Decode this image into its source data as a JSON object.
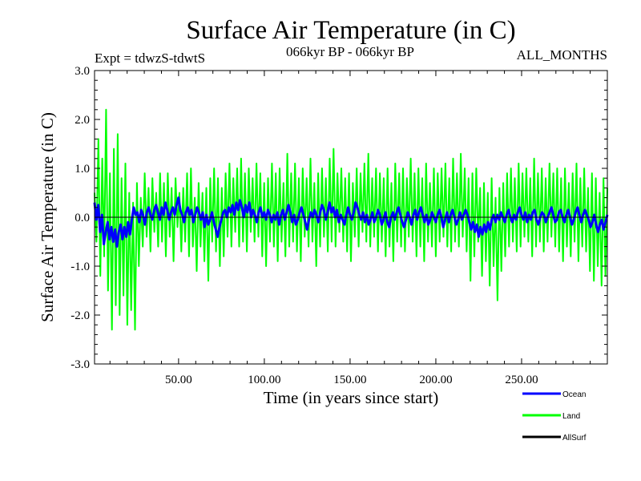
{
  "chart_data": {
    "type": "line",
    "title": "Surface Air Temperature (in C)",
    "subtitle_left": "Expt = tdwzS-tdwtS",
    "subtitle_center": "066kyr BP - 066kyr BP",
    "subtitle_right": "ALL_MONTHS",
    "xlabel": "Time (in years since start)",
    "ylabel": "Surface Air Temperature (in C)",
    "xlim": [
      1,
      300
    ],
    "ylim": [
      -3.0,
      3.0
    ],
    "x_ticks": [
      50,
      100,
      150,
      200,
      250
    ],
    "x_tick_labels": [
      "50.00",
      "100.00",
      "150.00",
      "200.00",
      "250.00"
    ],
    "y_ticks": [
      -3,
      -2,
      -1,
      0,
      1,
      2,
      3
    ],
    "y_tick_labels": [
      "-3.0",
      "-2.0",
      "-1.0",
      "0.0",
      "1.0",
      "2.0",
      "3.0"
    ],
    "zero_line": true,
    "legend_position": "bottom-right",
    "x_step": 0.0833,
    "series": [
      {
        "name": "Ocean",
        "color": "#0000ff",
        "values": [
          0.3,
          -0.05,
          0.25,
          -0.3,
          0.05,
          -0.55,
          -0.3,
          -0.1,
          -0.45,
          -0.2,
          -0.5,
          -0.25,
          -0.6,
          -0.3,
          -0.15,
          -0.45,
          -0.2,
          -0.4,
          -0.1,
          -0.35,
          -0.05,
          0.2,
          0.05,
          0.1,
          -0.1,
          0.15,
          0.05,
          -0.15,
          0.1,
          0.2,
          0.05,
          -0.05,
          0.15,
          0.25,
          0.1,
          -0.05,
          0.2,
          0.05,
          0.3,
          0.15,
          -0.05,
          0.1,
          0.2,
          0.05,
          0.25,
          0.4,
          0.15,
          0.05,
          -0.1,
          0.1,
          0.2,
          0.05,
          0.15,
          -0.1,
          0.05,
          0.2,
          0.1,
          -0.05,
          0.1,
          -0.2,
          0.05,
          -0.15,
          -0.05,
          0.1,
          -0.1,
          -0.25,
          -0.4,
          -0.2,
          -0.05,
          0.1,
          0.15,
          0.0,
          0.2,
          0.1,
          0.25,
          0.05,
          0.3,
          0.15,
          0.35,
          0.2,
          0.0,
          0.25,
          0.1,
          0.3,
          0.0,
          0.15,
          0.05,
          -0.1,
          0.1,
          0.2,
          0.0,
          0.1,
          -0.05,
          0.15,
          0.05,
          -0.1,
          0.05,
          -0.05,
          0.1,
          -0.15,
          0.05,
          0.15,
          -0.05,
          0.1,
          0.25,
          0.1,
          -0.1,
          0.05,
          -0.15,
          -0.05,
          0.1,
          0.2,
          0.05,
          -0.1,
          -0.25,
          -0.05,
          0.1,
          0.0,
          0.15,
          0.05,
          -0.1,
          0.1,
          0.25,
          0.15,
          -0.05,
          0.1,
          0.3,
          0.1,
          0.2,
          0.0,
          0.15,
          -0.1,
          0.05,
          -0.05,
          -0.15,
          0.05,
          0.2,
          0.05,
          -0.05,
          0.1,
          0.3,
          0.2,
          0.05,
          -0.05,
          0.1,
          -0.1,
          0.05,
          -0.15,
          -0.05,
          0.1,
          -0.1,
          0.0,
          0.15,
          0.05,
          -0.15,
          -0.05,
          0.1,
          -0.1,
          -0.2,
          0.0,
          0.1,
          -0.05,
          0.1,
          0.2,
          0.05,
          -0.1,
          -0.2,
          -0.05,
          0.1,
          0.0,
          -0.15,
          0.05,
          0.15,
          -0.05,
          0.1,
          0.2,
          0.05,
          -0.1,
          0.05,
          -0.15,
          -0.05,
          0.1,
          0.0,
          -0.1,
          0.05,
          0.15,
          0.0,
          -0.2,
          -0.05,
          0.1,
          -0.1,
          0.05,
          0.15,
          0.0,
          -0.15,
          -0.05,
          0.1,
          -0.05,
          0.05,
          0.15,
          0.05,
          -0.1,
          -0.25,
          -0.1,
          -0.3,
          -0.15,
          -0.4,
          -0.2,
          -0.35,
          -0.15,
          -0.3,
          -0.1,
          -0.25,
          -0.05,
          0.05,
          -0.1,
          0.05,
          -0.05,
          0.1,
          0.0,
          -0.1,
          0.05,
          0.15,
          0.0,
          -0.1,
          0.05,
          -0.05,
          0.1,
          0.2,
          0.05,
          -0.05,
          0.1,
          -0.1,
          0.05,
          -0.05,
          0.1,
          0.15,
          -0.05,
          -0.15,
          0.0,
          0.1,
          0.05,
          -0.1,
          0.0,
          0.1,
          0.2,
          0.05,
          -0.1,
          -0.05,
          0.1,
          0.15,
          0.0,
          -0.1,
          0.05,
          0.15,
          0.0,
          -0.15,
          -0.05,
          0.1,
          0.2,
          0.05,
          -0.1,
          0.05,
          0.15,
          0.05,
          -0.05,
          -0.2,
          -0.1,
          0.05,
          -0.15,
          -0.3,
          -0.15,
          -0.05,
          -0.25,
          -0.1,
          0.05
        ]
      },
      {
        "name": "Land",
        "color": "#00ff00",
        "values": [
          0.5,
          -0.5,
          1.6,
          -1.2,
          1.2,
          -0.8,
          2.2,
          -1.5,
          0.9,
          -2.3,
          1.4,
          -1.8,
          1.7,
          -2.0,
          0.8,
          -1.6,
          1.1,
          -2.2,
          0.5,
          -1.9,
          0.3,
          -2.3,
          0.7,
          -1.0,
          0.4,
          -0.6,
          0.9,
          -0.4,
          0.6,
          -0.7,
          0.8,
          -0.3,
          0.5,
          -0.6,
          0.9,
          -0.5,
          0.7,
          -0.8,
          0.9,
          -0.4,
          0.6,
          -0.9,
          0.8,
          -0.2,
          0.5,
          -0.7,
          0.6,
          -0.5,
          0.9,
          -0.8,
          1.0,
          -0.6,
          0.4,
          -1.1,
          0.7,
          -0.6,
          0.5,
          -0.9,
          0.6,
          -1.3,
          0.8,
          -0.5,
          1.0,
          -0.7,
          0.8,
          -1.0,
          0.6,
          -0.8,
          0.9,
          -0.4,
          1.1,
          -0.6,
          0.8,
          -0.3,
          1.0,
          -0.6,
          1.2,
          -0.5,
          0.9,
          -0.7,
          1.0,
          -0.3,
          0.8,
          -0.5,
          1.1,
          -0.4,
          0.9,
          -0.8,
          0.7,
          -1.0,
          0.8,
          -0.5,
          1.1,
          -0.6,
          0.9,
          -0.9,
          1.0,
          -0.5,
          0.7,
          -0.8,
          1.3,
          -0.6,
          0.9,
          -0.5,
          1.1,
          -0.7,
          0.8,
          -0.9,
          1.0,
          -0.4,
          0.8,
          -0.6,
          1.2,
          -0.5,
          0.7,
          -1.0,
          0.9,
          -0.6,
          1.0,
          -0.4,
          0.8,
          -0.7,
          1.2,
          -0.5,
          1.4,
          -0.6,
          0.9,
          -0.3,
          1.0,
          -0.5,
          0.8,
          -0.7,
          0.9,
          -0.9,
          0.7,
          -0.4,
          1.0,
          -0.6,
          0.9,
          -0.3,
          1.1,
          -0.5,
          1.3,
          -0.6,
          0.8,
          -0.4,
          1.0,
          -0.7,
          0.9,
          -0.5,
          0.8,
          -0.8,
          1.0,
          -0.6,
          0.7,
          -0.9,
          1.1,
          -0.5,
          0.9,
          -0.6,
          1.0,
          -0.7,
          0.8,
          -0.4,
          1.2,
          -0.5,
          0.9,
          -0.8,
          1.0,
          -0.6,
          0.8,
          -0.9,
          1.1,
          -0.5,
          0.7,
          -0.6,
          1.0,
          -0.8,
          0.9,
          -0.5,
          1.0,
          -0.4,
          1.1,
          -0.6,
          0.8,
          -0.7,
          1.2,
          -0.5,
          0.9,
          -0.6,
          1.3,
          -0.4,
          1.0,
          -0.7,
          0.8,
          -1.3,
          0.9,
          -0.8,
          1.0,
          -0.5,
          0.6,
          -1.2,
          0.7,
          -0.9,
          0.5,
          -1.4,
          0.8,
          -1.0,
          0.4,
          -1.7,
          0.6,
          -1.1,
          0.7,
          -0.8,
          0.9,
          -0.6,
          1.0,
          -0.5,
          0.8,
          -0.7,
          1.1,
          -0.6,
          0.9,
          -0.4,
          1.0,
          -0.5,
          0.8,
          -0.8,
          1.2,
          -0.6,
          0.9,
          -0.5,
          1.0,
          -0.7,
          0.8,
          -0.5,
          1.1,
          -0.4,
          0.9,
          -0.6,
          1.0,
          -0.7,
          0.8,
          -0.9,
          1.0,
          -0.6,
          0.7,
          -0.8,
          0.9,
          -0.5,
          1.1,
          -0.9,
          0.8,
          -0.6,
          1.0,
          -0.7,
          0.6,
          -1.1,
          0.9,
          -1.3,
          0.8,
          -1.0,
          0.5,
          -1.4,
          0.8,
          -1.2,
          0.6
        ]
      },
      {
        "name": "AllSurf",
        "color": "#000000",
        "values": []
      }
    ]
  }
}
